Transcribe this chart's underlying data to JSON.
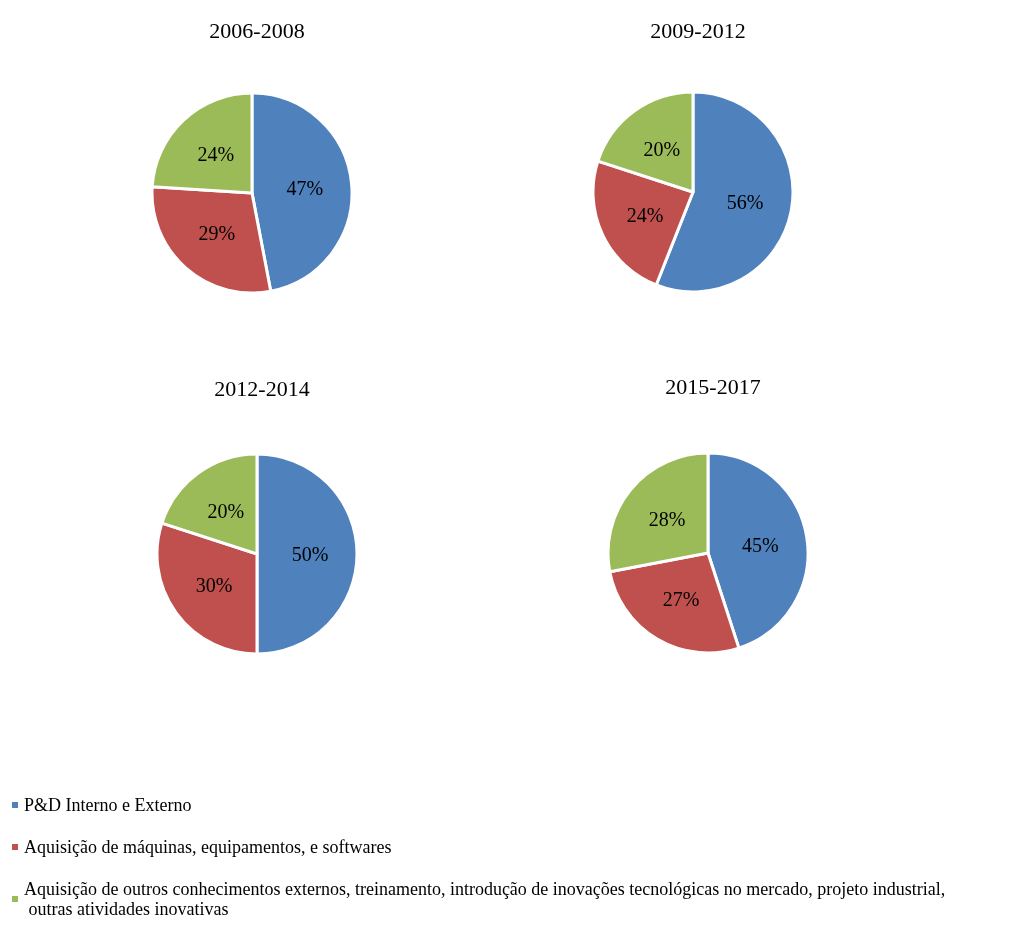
{
  "chart_data": [
    {
      "type": "pie",
      "title": "2006-2008",
      "categories": [
        null,
        null,
        null
      ],
      "values": [
        47,
        29,
        24
      ],
      "value_labels": [
        "47%",
        "29%",
        "24%"
      ],
      "colors": [
        "#4f81bd",
        "#c0504d",
        "#9bbb59"
      ]
    },
    {
      "type": "pie",
      "title": "2009-2012",
      "categories": [
        null,
        null,
        null
      ],
      "values": [
        56,
        24,
        20
      ],
      "value_labels": [
        "56%",
        "24%",
        "20%"
      ],
      "colors": [
        "#4f81bd",
        "#c0504d",
        "#9bbb59"
      ]
    },
    {
      "type": "pie",
      "title": "2012-2014",
      "categories": [
        null,
        null,
        null
      ],
      "values": [
        50,
        30,
        20
      ],
      "value_labels": [
        "50%",
        "30%",
        "20%"
      ],
      "colors": [
        "#4f81bd",
        "#c0504d",
        "#9bbb59"
      ]
    },
    {
      "type": "pie",
      "title": "2015-2017",
      "categories": [
        "P&D Interno e Externo",
        "Aquisição de máquinas, equipamentos, e softwares",
        "Aquisição de outros conhecimentos externos, treinamento, introdução de inovações tecnológicas no mercado, projeto industrial, outras atividades inovativas"
      ],
      "values": [
        45,
        27,
        28
      ],
      "value_labels": [
        "45%",
        "27%",
        "28%"
      ],
      "colors": [
        "#4f81bd",
        "#c0504d",
        "#9bbb59"
      ],
      "legend": "bottom"
    }
  ]
}
